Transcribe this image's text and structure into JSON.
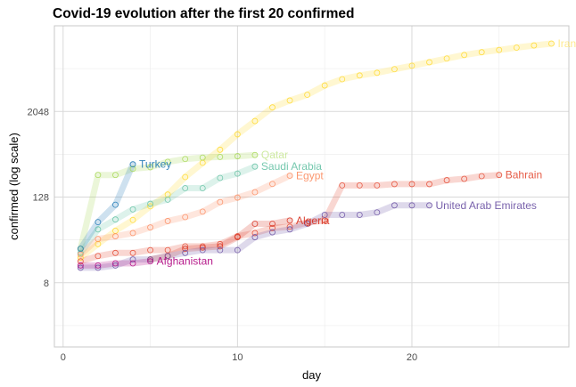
{
  "chart_data": {
    "type": "line",
    "title": "Covid-19 evolution after the first 20 confirmed",
    "xlabel": "day",
    "ylabel": "confirmed (log scale)",
    "xlim": [
      -0.5,
      29
    ],
    "ylim": [
      1,
      32768
    ],
    "y_scale": "log2",
    "x_ticks": [
      0,
      10,
      20
    ],
    "y_ticks": [
      8,
      128,
      2048
    ],
    "y_tick_labels": [
      "8",
      "128",
      "2048"
    ],
    "grid": true,
    "legend": "none (series labelled at line ends)",
    "series": [
      {
        "name": "Iran",
        "color": "#ffd92f",
        "x": [
          1,
          2,
          3,
          4,
          5,
          6,
          7,
          8,
          9,
          10,
          11,
          12,
          13,
          14,
          15,
          16,
          17,
          18,
          19,
          20,
          21,
          22,
          23,
          24,
          25,
          26,
          27,
          28
        ],
        "y": [
          18,
          28,
          43,
          61,
          95,
          139,
          245,
          388,
          593,
          978,
          1501,
          2336,
          2922,
          3513,
          4747,
          5823,
          6566,
          7161,
          8042,
          9000,
          10075,
          11364,
          12729,
          13938,
          14991,
          16169,
          17361,
          18407
        ]
      },
      {
        "name": "Qatar",
        "color": "#a6d854",
        "x": [
          1,
          2,
          3,
          4,
          5,
          6,
          7,
          8,
          9,
          10,
          11
        ],
        "y": [
          24,
          262,
          262,
          320,
          337,
          401,
          439,
          460,
          470,
          481,
          500
        ]
      },
      {
        "name": "Saudi Arabia",
        "color": "#66c2a5",
        "x": [
          1,
          2,
          3,
          4,
          5,
          6,
          7,
          8,
          9,
          10,
          11
        ],
        "y": [
          21,
          45,
          62,
          86,
          103,
          118,
          171,
          171,
          238,
          274,
          344
        ]
      },
      {
        "name": "Egypt",
        "color": "#fc8d62",
        "x": [
          1,
          2,
          3,
          4,
          5,
          6,
          7,
          8,
          9,
          10,
          11,
          12,
          13
        ],
        "y": [
          20,
          33,
          36,
          40,
          48,
          59,
          67,
          80,
          109,
          126,
          150,
          196,
          256
        ]
      },
      {
        "name": "Turkey",
        "color": "#1f78b4",
        "x": [
          1,
          2,
          3,
          4
        ],
        "y": [
          24,
          57,
          100,
          370
        ]
      },
      {
        "name": "Bahrain",
        "color": "#e34a33",
        "x": [
          1,
          2,
          3,
          4,
          5,
          6,
          7,
          8,
          9,
          10,
          11,
          12,
          13,
          14,
          15,
          16,
          17,
          18,
          19,
          20,
          21,
          22,
          23,
          24,
          25
        ],
        "y": [
          16,
          19,
          21,
          21,
          23,
          23,
          26,
          26,
          28,
          36,
          40,
          47,
          49,
          56,
          60,
          187,
          187,
          187,
          195,
          195,
          195,
          221,
          231,
          252,
          262
        ]
      },
      {
        "name": "Algeria",
        "color": "#d7301f",
        "x": [
          5,
          6,
          7,
          8,
          9,
          10,
          11,
          12,
          13
        ],
        "y": [
          17,
          19,
          24,
          25,
          26,
          35,
          54,
          54,
          60
        ]
      },
      {
        "name": "United Arab Emirates",
        "color": "#6a51a3",
        "x": [
          1,
          2,
          3,
          4,
          5,
          6,
          7,
          8,
          9,
          10,
          11,
          12,
          13,
          14,
          15,
          16,
          17,
          18,
          19,
          20,
          21
        ],
        "y": [
          13,
          13,
          14,
          17,
          17,
          19,
          21,
          23,
          23,
          23,
          35,
          41,
          45,
          54,
          72,
          72,
          72,
          78,
          98,
          98,
          98
        ]
      },
      {
        "name": "Afghanistan",
        "color": "#ae017e",
        "x": [
          1,
          2,
          3,
          4,
          5
        ],
        "y": [
          14,
          14,
          15,
          15,
          16
        ]
      }
    ]
  }
}
